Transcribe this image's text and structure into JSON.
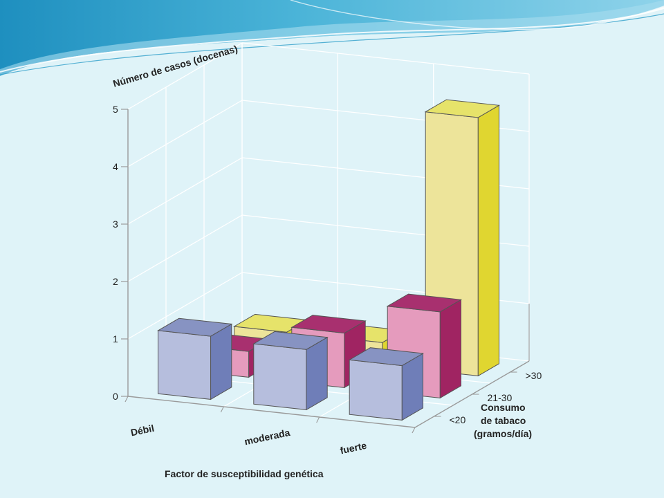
{
  "chart_data": {
    "type": "bar",
    "subtype": "3d-grouped",
    "title": "",
    "ylabel": "Número de casos (docenas)",
    "xlabel": "Factor de susceptibilidad genética",
    "zlabel_lines": [
      "Consumo",
      "de tabaco",
      "(gramos/día)"
    ],
    "ylim": [
      0,
      5
    ],
    "yticks": [
      "0",
      "1",
      "2",
      "3",
      "4",
      "5"
    ],
    "categories": [
      "Débil",
      "moderada",
      "fuerte"
    ],
    "series": [
      {
        "name": "<20",
        "color": "#b6bedd",
        "values": [
          1.1,
          1.05,
          0.95
        ]
      },
      {
        "name": "21-30",
        "color": "#e59bbd",
        "values": [
          0.45,
          0.95,
          1.5
        ]
      },
      {
        "name": ">30",
        "color": "#ede49a",
        "values": [
          0.4,
          0.4,
          4.5
        ]
      }
    ]
  },
  "colors": {
    "background": "#dff3f8",
    "wave_dark": "#2f9fc9",
    "wave_light": "#a7dcee",
    "grid": "#ffffff",
    "axis": "#9a9a9a"
  }
}
